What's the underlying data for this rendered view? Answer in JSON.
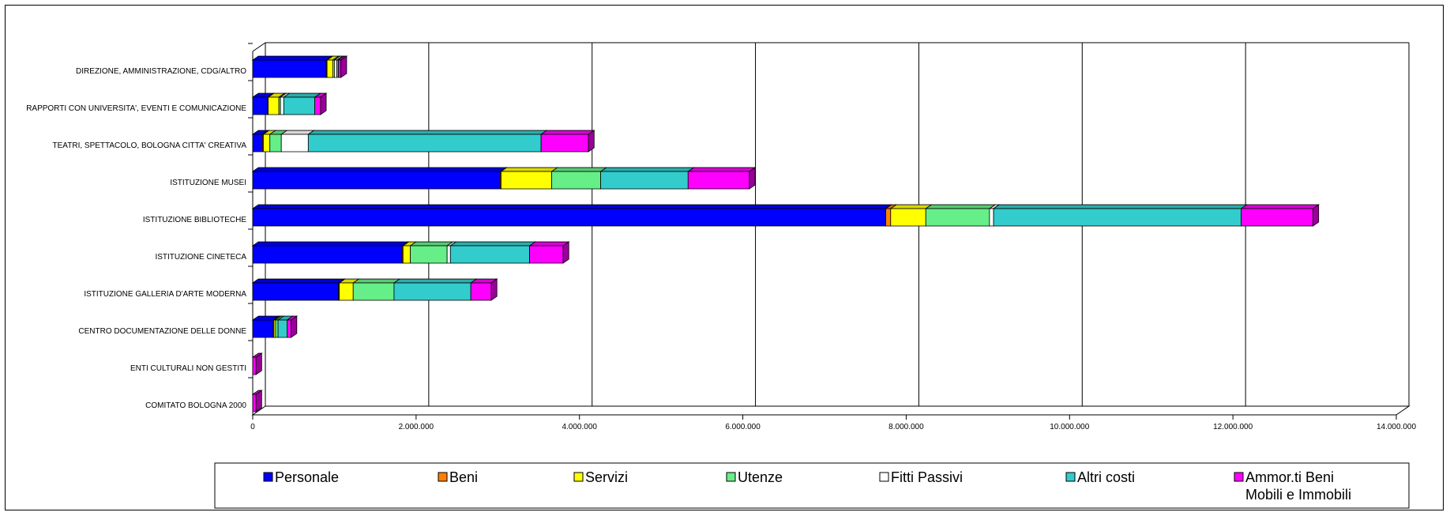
{
  "chart_data": {
    "type": "bar",
    "orientation": "horizontal",
    "stacked": true,
    "style": "3d",
    "categories": [
      "DIREZIONE, AMMINISTRAZIONE, CDG/ALTRO",
      "RAPPORTI CON UNIVERSITA', EVENTI E COMUNICAZIONE",
      "TEATRI, SPETTACOLO, BOLOGNA CITTA' CREATIVA",
      "ISTITUZIONE MUSEI",
      "ISTITUZIONE BIBLIOTECHE",
      "ISTITUZIONE CINETECA",
      "ISTITUZIONE GALLERIA D'ARTE MODERNA",
      "CENTRO DOCUMENTAZIONE DELLE DONNE",
      "ENTI CULTURALI NON GESTITI",
      "COMITATO BOLOGNA 2000"
    ],
    "series": [
      {
        "name": "Personale",
        "color": "#0000FF",
        "values": [
          900000,
          180000,
          120000,
          3030000,
          7750000,
          1830000,
          1050000,
          250000,
          0,
          0
        ]
      },
      {
        "name": "Beni",
        "color": "#FF8000",
        "values": [
          10000,
          10000,
          10000,
          10000,
          60000,
          10000,
          10000,
          10000,
          0,
          0
        ]
      },
      {
        "name": "Servizi",
        "color": "#FFFF00",
        "values": [
          70000,
          130000,
          80000,
          620000,
          430000,
          90000,
          170000,
          20000,
          0,
          0
        ]
      },
      {
        "name": "Utenze",
        "color": "#66EE88",
        "values": [
          20000,
          20000,
          140000,
          600000,
          780000,
          450000,
          500000,
          30000,
          0,
          0
        ]
      },
      {
        "name": "Fitti Passivi",
        "color": "#FFFFFF",
        "values": [
          30000,
          40000,
          330000,
          0,
          50000,
          40000,
          0,
          0,
          0,
          0
        ]
      },
      {
        "name": "Altri costi",
        "color": "#33CCCC",
        "values": [
          20000,
          380000,
          2850000,
          1070000,
          3030000,
          970000,
          940000,
          110000,
          0,
          0
        ]
      },
      {
        "name": "Ammor.ti Beni Mobili e Immobili",
        "color": "#FF00FF",
        "values": [
          30000,
          70000,
          580000,
          750000,
          880000,
          410000,
          250000,
          50000,
          40000,
          40000
        ]
      }
    ],
    "xlim": [
      0,
      14000000
    ],
    "xticks": [
      0,
      2000000,
      4000000,
      6000000,
      8000000,
      10000000,
      12000000,
      14000000
    ],
    "xtick_labels": [
      "0",
      "2.000.000",
      "4.000.000",
      "6.000.000",
      "8.000.000",
      "10.000.000",
      "12.000.000",
      "14.000.000"
    ],
    "title": "",
    "xlabel": "",
    "ylabel": "",
    "grid": "vertical",
    "legend_position": "bottom"
  }
}
